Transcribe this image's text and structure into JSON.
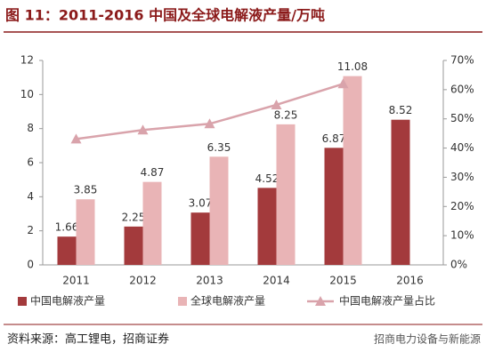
{
  "chart_data": {
    "type": "bar",
    "title": "图 11：2011-2016 中国及全球电解液产量/万吨",
    "categories": [
      "2011",
      "2012",
      "2013",
      "2014",
      "2015",
      "2016"
    ],
    "series": [
      {
        "name": "中国电解液产量",
        "color": "#a33a3c",
        "values": [
          1.66,
          2.25,
          3.07,
          4.52,
          6.87,
          8.52
        ]
      },
      {
        "name": "全球电解液产量",
        "color": "#e9b4b6",
        "values": [
          3.85,
          4.87,
          6.35,
          8.25,
          11.08,
          null
        ]
      },
      {
        "name": "中国电解液产量占比",
        "color": "#d9a3ab",
        "type": "line",
        "axis": "y2",
        "values": [
          43.1,
          46.2,
          48.3,
          54.8,
          62.0,
          null
        ]
      }
    ],
    "ylim": [
      0,
      12
    ],
    "yticks": [
      0,
      2,
      4,
      6,
      8,
      10,
      12
    ],
    "y2lim": [
      0,
      70
    ],
    "y2ticks": [
      {
        "value": 0,
        "label": "0%"
      },
      {
        "value": 10,
        "label": "10%"
      },
      {
        "value": 20,
        "label": "20%"
      },
      {
        "value": 30,
        "label": "30%"
      },
      {
        "value": 40,
        "label": "40%"
      },
      {
        "value": 50,
        "label": "50%"
      },
      {
        "value": 60,
        "label": "60%"
      },
      {
        "value": 70,
        "label": "70%"
      }
    ],
    "legend": "bottom",
    "source": "资料来源：高工锂电，招商证券",
    "watermark": "招商电力设备与新能源"
  }
}
